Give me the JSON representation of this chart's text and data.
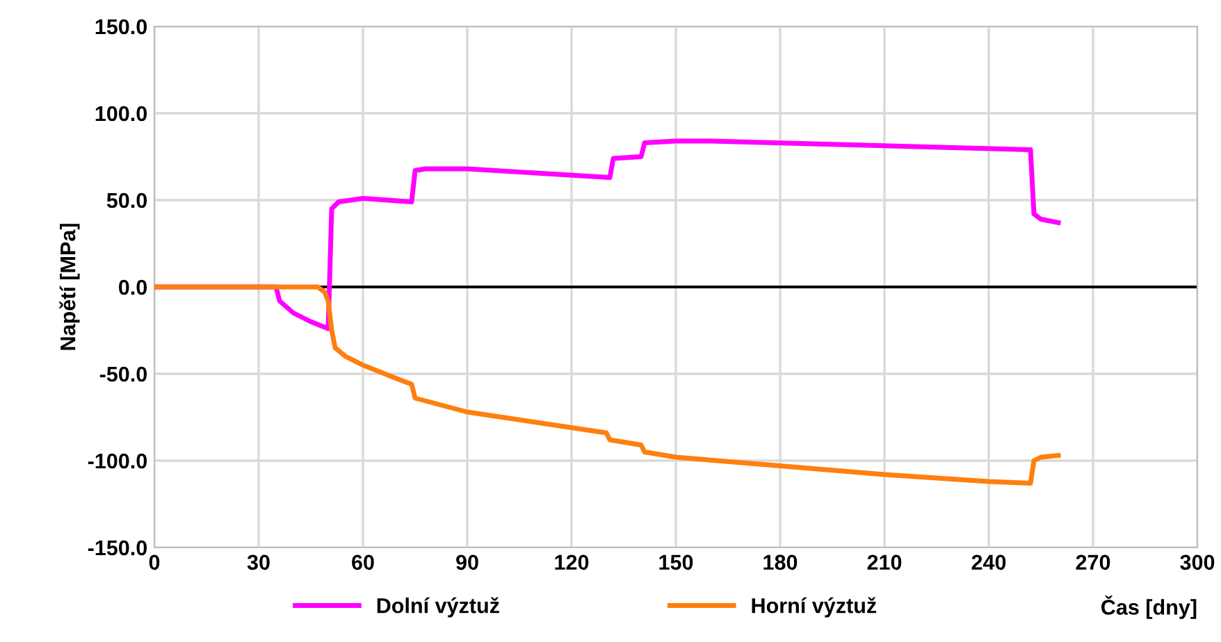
{
  "chart_data": {
    "type": "line",
    "xlabel": "Čas [dny]",
    "ylabel": "Napětí [MPa]",
    "xlim": [
      0,
      300
    ],
    "xticks": [
      0,
      30,
      60,
      90,
      120,
      150,
      180,
      210,
      240,
      270,
      300
    ],
    "ylim": [
      -150,
      150
    ],
    "yticks": [
      {
        "value": -150,
        "label": "-150.0"
      },
      {
        "value": -100,
        "label": "-100.0"
      },
      {
        "value": -50,
        "label": "-50.0"
      },
      {
        "value": 0,
        "label": "0.0"
      },
      {
        "value": 50,
        "label": "50.0"
      },
      {
        "value": 100,
        "label": "100.0"
      },
      {
        "value": 150,
        "label": "150.0"
      }
    ],
    "grid": true,
    "legend": "bottom",
    "marker": "none",
    "line_style": "solid",
    "ref_lines": [
      {
        "axis": "y",
        "value": 0,
        "color": "#000000"
      }
    ],
    "series": [
      {
        "name": "Dolní výztuž",
        "color": "#ff00ff",
        "x": [
          0,
          35,
          36,
          40,
          45,
          50,
          51,
          53,
          60,
          74,
          75,
          78,
          90,
          131,
          132,
          140,
          141,
          150,
          160,
          252,
          253,
          255,
          260
        ],
        "values": [
          0,
          0,
          -8,
          -15,
          -20,
          -24,
          45,
          49,
          51,
          49,
          67,
          68,
          68,
          63,
          74,
          75,
          83,
          84,
          84,
          79,
          42,
          39,
          37
        ]
      },
      {
        "name": "Horní výztuž",
        "color": "#ff7f0e",
        "x": [
          0,
          47,
          49,
          50,
          51,
          52,
          55,
          60,
          70,
          74,
          75,
          90,
          120,
          130,
          131,
          140,
          141,
          150,
          180,
          210,
          240,
          252,
          253,
          255,
          260
        ],
        "values": [
          0,
          0,
          -3,
          -8,
          -25,
          -35,
          -40,
          -45,
          -53,
          -56,
          -64,
          -72,
          -81,
          -84,
          -88,
          -91,
          -95,
          -98,
          -103,
          -108,
          -112,
          -113,
          -100,
          -98,
          -97
        ]
      }
    ]
  }
}
